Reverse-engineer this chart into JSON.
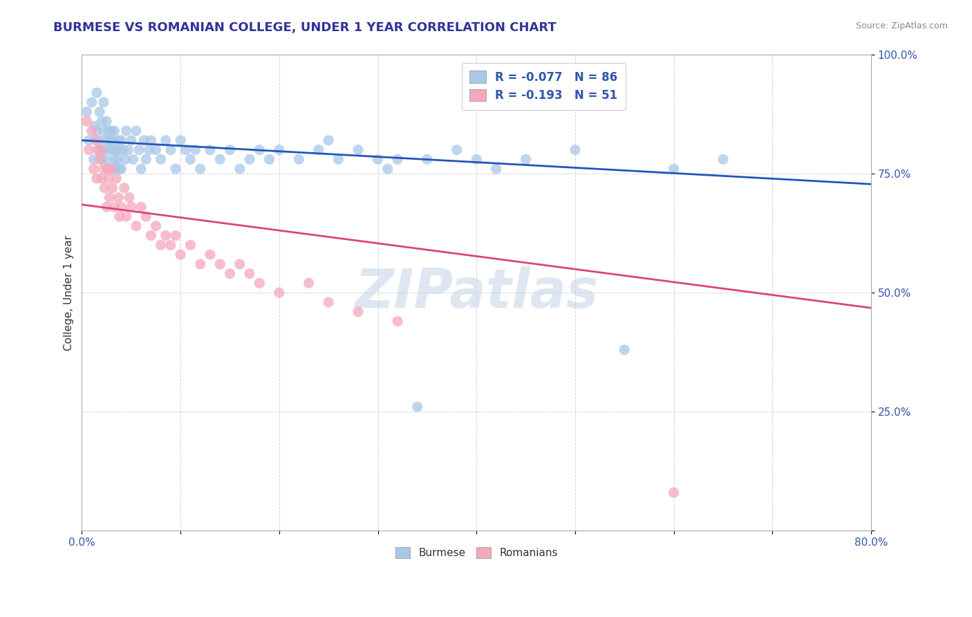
{
  "title": "BURMESE VS ROMANIAN COLLEGE, UNDER 1 YEAR CORRELATION CHART",
  "source_text": "Source: ZipAtlas.com",
  "ylabel": "College, Under 1 year",
  "xmin": 0.0,
  "xmax": 0.8,
  "ymin": 0.0,
  "ymax": 1.0,
  "blue_color": "#a8c8e8",
  "pink_color": "#f4a8bc",
  "blue_line_color": "#2255bb",
  "pink_line_color": "#dd4477",
  "watermark": "ZIPatlas",
  "blue_trend": [
    0.82,
    0.728
  ],
  "pink_trend": [
    0.685,
    0.468
  ],
  "blue_x": [
    0.005,
    0.007,
    0.01,
    0.012,
    0.013,
    0.015,
    0.015,
    0.017,
    0.018,
    0.018,
    0.02,
    0.02,
    0.022,
    0.022,
    0.023,
    0.024,
    0.025,
    0.025,
    0.026,
    0.027,
    0.028,
    0.028,
    0.029,
    0.03,
    0.03,
    0.031,
    0.032,
    0.033,
    0.033,
    0.034,
    0.035,
    0.036,
    0.037,
    0.038,
    0.039,
    0.04,
    0.04,
    0.042,
    0.044,
    0.045,
    0.047,
    0.05,
    0.052,
    0.055,
    0.058,
    0.06,
    0.063,
    0.065,
    0.068,
    0.07,
    0.075,
    0.08,
    0.085,
    0.09,
    0.095,
    0.1,
    0.105,
    0.11,
    0.115,
    0.12,
    0.13,
    0.14,
    0.15,
    0.16,
    0.17,
    0.18,
    0.19,
    0.2,
    0.22,
    0.24,
    0.25,
    0.26,
    0.28,
    0.3,
    0.31,
    0.32,
    0.34,
    0.35,
    0.38,
    0.4,
    0.42,
    0.45,
    0.5,
    0.55,
    0.6,
    0.65
  ],
  "blue_y": [
    0.88,
    0.82,
    0.9,
    0.78,
    0.85,
    0.84,
    0.92,
    0.82,
    0.8,
    0.88,
    0.86,
    0.78,
    0.9,
    0.84,
    0.8,
    0.82,
    0.86,
    0.78,
    0.76,
    0.84,
    0.82,
    0.76,
    0.8,
    0.84,
    0.76,
    0.82,
    0.8,
    0.78,
    0.84,
    0.76,
    0.8,
    0.78,
    0.82,
    0.76,
    0.8,
    0.82,
    0.76,
    0.8,
    0.78,
    0.84,
    0.8,
    0.82,
    0.78,
    0.84,
    0.8,
    0.76,
    0.82,
    0.78,
    0.8,
    0.82,
    0.8,
    0.78,
    0.82,
    0.8,
    0.76,
    0.82,
    0.8,
    0.78,
    0.8,
    0.76,
    0.8,
    0.78,
    0.8,
    0.76,
    0.78,
    0.8,
    0.78,
    0.8,
    0.78,
    0.8,
    0.82,
    0.78,
    0.8,
    0.78,
    0.76,
    0.78,
    0.26,
    0.78,
    0.8,
    0.78,
    0.76,
    0.78,
    0.8,
    0.38,
    0.76,
    0.78
  ],
  "pink_x": [
    0.005,
    0.007,
    0.01,
    0.012,
    0.014,
    0.015,
    0.016,
    0.018,
    0.02,
    0.02,
    0.022,
    0.023,
    0.025,
    0.026,
    0.027,
    0.028,
    0.03,
    0.031,
    0.033,
    0.035,
    0.037,
    0.038,
    0.04,
    0.043,
    0.045,
    0.048,
    0.05,
    0.055,
    0.06,
    0.065,
    0.07,
    0.075,
    0.08,
    0.085,
    0.09,
    0.095,
    0.1,
    0.11,
    0.12,
    0.13,
    0.14,
    0.15,
    0.16,
    0.17,
    0.18,
    0.2,
    0.23,
    0.25,
    0.28,
    0.32,
    0.6
  ],
  "pink_y": [
    0.86,
    0.8,
    0.84,
    0.76,
    0.82,
    0.74,
    0.8,
    0.78,
    0.74,
    0.8,
    0.76,
    0.72,
    0.68,
    0.76,
    0.74,
    0.7,
    0.76,
    0.72,
    0.68,
    0.74,
    0.7,
    0.66,
    0.68,
    0.72,
    0.66,
    0.7,
    0.68,
    0.64,
    0.68,
    0.66,
    0.62,
    0.64,
    0.6,
    0.62,
    0.6,
    0.62,
    0.58,
    0.6,
    0.56,
    0.58,
    0.56,
    0.54,
    0.56,
    0.54,
    0.52,
    0.5,
    0.52,
    0.48,
    0.46,
    0.44,
    0.08
  ]
}
